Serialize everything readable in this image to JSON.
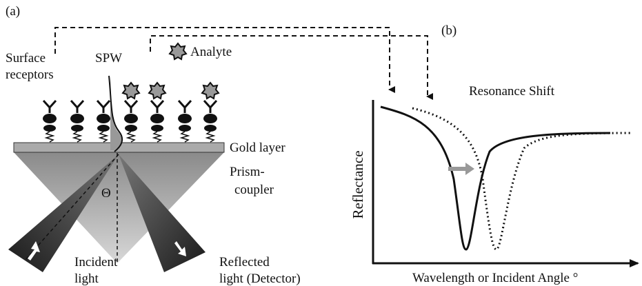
{
  "panel_a": {
    "tag": "(a)",
    "surface_receptors": [
      "Surface",
      "receptors"
    ],
    "spw": "SPW",
    "analyte": "Analyte",
    "gold_layer": "Gold layer",
    "prism_coupler": [
      "Prism-",
      "coupler"
    ],
    "theta": "Θ",
    "incident_light": [
      "Incident",
      "light"
    ],
    "reflected_light": [
      "Reflected",
      "light (Detector)"
    ]
  },
  "panel_b": {
    "tag": "(b)",
    "title": "Resonance Shift",
    "y_label": "Reflectance",
    "x_label": "Wavelength or Incident Angle °"
  }
}
